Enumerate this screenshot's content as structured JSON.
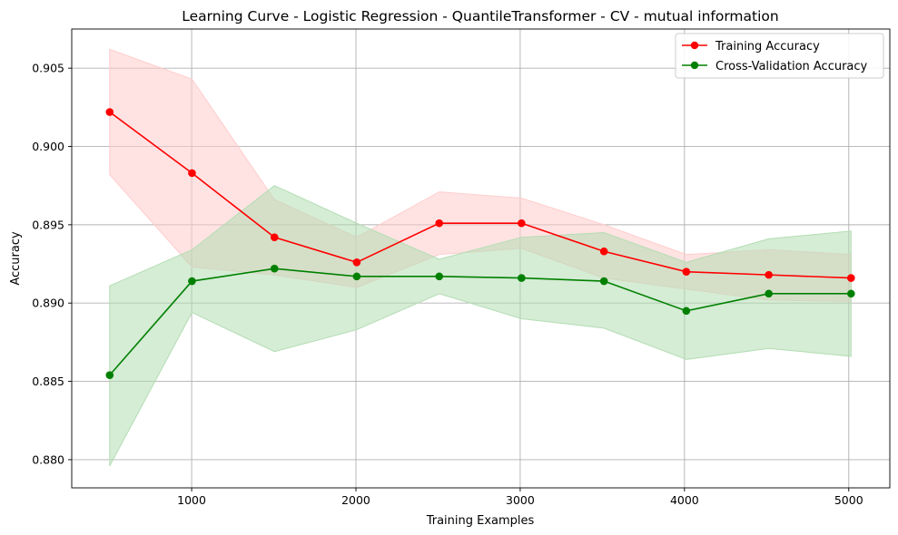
{
  "chart_data": {
    "type": "line",
    "title": "Learning Curve - Logistic Regression - QuantileTransformer - CV - mutual information",
    "xlabel": "Training Examples",
    "ylabel": "Accuracy",
    "xlim": [
      270,
      5250
    ],
    "ylim": [
      0.8782,
      0.9075
    ],
    "xticks": [
      1000,
      2000,
      3000,
      4000,
      5000
    ],
    "yticks": [
      0.88,
      0.885,
      0.89,
      0.895,
      0.9,
      0.905
    ],
    "xtick_labels": [
      "1000",
      "2000",
      "3000",
      "4000",
      "5000"
    ],
    "ytick_labels": [
      "0.880",
      "0.885",
      "0.890",
      "0.895",
      "0.900",
      "0.905"
    ],
    "grid": true,
    "legend_position": "top-right",
    "x": [
      501,
      1002,
      1504,
      2005,
      2507,
      3008,
      3510,
      4011,
      4513,
      5014
    ],
    "series": [
      {
        "name": "Training Accuracy",
        "color": "#ff0000",
        "fill_color": "#ffcccc",
        "values": [
          0.9022,
          0.8983,
          0.8942,
          0.8926,
          0.8951,
          0.8951,
          0.8933,
          0.892,
          0.8918,
          0.8916
        ],
        "upper": [
          0.9062,
          0.9043,
          0.8966,
          0.8942,
          0.8971,
          0.8967,
          0.895,
          0.8931,
          0.8934,
          0.8931
        ],
        "lower": [
          0.8982,
          0.8923,
          0.8918,
          0.891,
          0.8931,
          0.8935,
          0.8916,
          0.8909,
          0.8902,
          0.8901
        ]
      },
      {
        "name": "Cross-Validation Accuracy",
        "color": "#008000",
        "fill_color": "#b3ddb3",
        "values": [
          0.8854,
          0.8914,
          0.8922,
          0.8917,
          0.8917,
          0.8916,
          0.8914,
          0.8895,
          0.8906,
          0.8906
        ],
        "upper": [
          0.8911,
          0.8934,
          0.8975,
          0.8951,
          0.8928,
          0.8942,
          0.8945,
          0.8926,
          0.8941,
          0.8946
        ],
        "lower": [
          0.8796,
          0.8894,
          0.8869,
          0.8883,
          0.8906,
          0.889,
          0.8884,
          0.8864,
          0.8871,
          0.8866
        ]
      }
    ]
  }
}
